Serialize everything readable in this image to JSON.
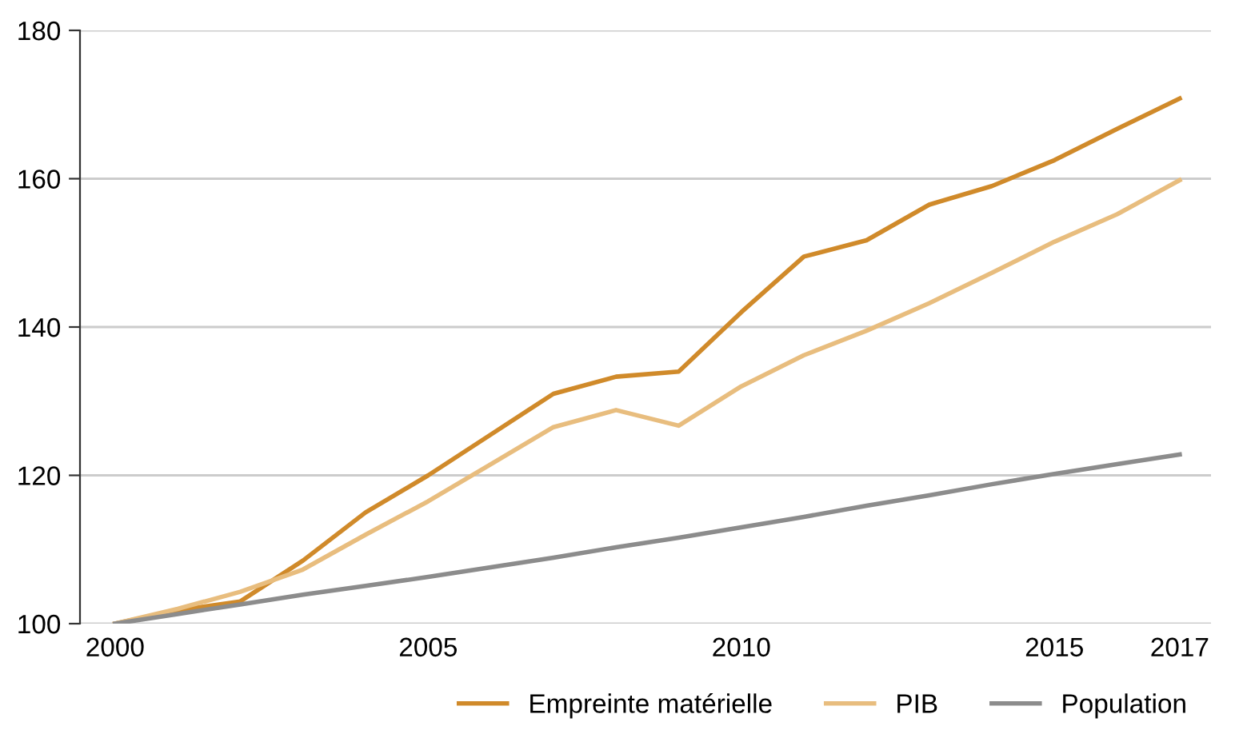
{
  "chart_data": {
    "type": "line",
    "x": [
      2000,
      2001,
      2002,
      2003,
      2004,
      2005,
      2006,
      2007,
      2008,
      2009,
      2010,
      2011,
      2012,
      2013,
      2014,
      2015,
      2016,
      2017
    ],
    "series": [
      {
        "name": "Empreinte matérielle",
        "color": "#d08a2a",
        "values": [
          100,
          101.8,
          103,
          108.5,
          115,
          120,
          125.5,
          131,
          133.3,
          134,
          142,
          149.5,
          151.7,
          156.5,
          159,
          162.5,
          166.7,
          170.8
        ]
      },
      {
        "name": "PIB",
        "color": "#e8bd7e",
        "values": [
          100,
          102,
          104.3,
          107.3,
          112,
          116.5,
          121.5,
          126.5,
          128.8,
          126.7,
          132,
          136.2,
          139.5,
          143.2,
          147.3,
          151.5,
          155.2,
          159.8
        ]
      },
      {
        "name": "Population",
        "color": "#8c8c8c",
        "values": [
          100,
          101.3,
          102.6,
          103.9,
          105.1,
          106.3,
          107.6,
          108.9,
          110.3,
          111.6,
          113,
          114.4,
          115.9,
          117.3,
          118.8,
          120.2,
          121.5,
          122.8
        ]
      }
    ],
    "xlim": [
      1999.44,
      2017.5
    ],
    "ylim": [
      100,
      180
    ],
    "xticks": [
      2000,
      2005,
      2010,
      2015,
      2017
    ],
    "yticks": [
      100,
      120,
      140,
      160,
      180
    ],
    "grid": "y",
    "legend": "bottom right",
    "marker": "none",
    "line_style": "solid"
  }
}
